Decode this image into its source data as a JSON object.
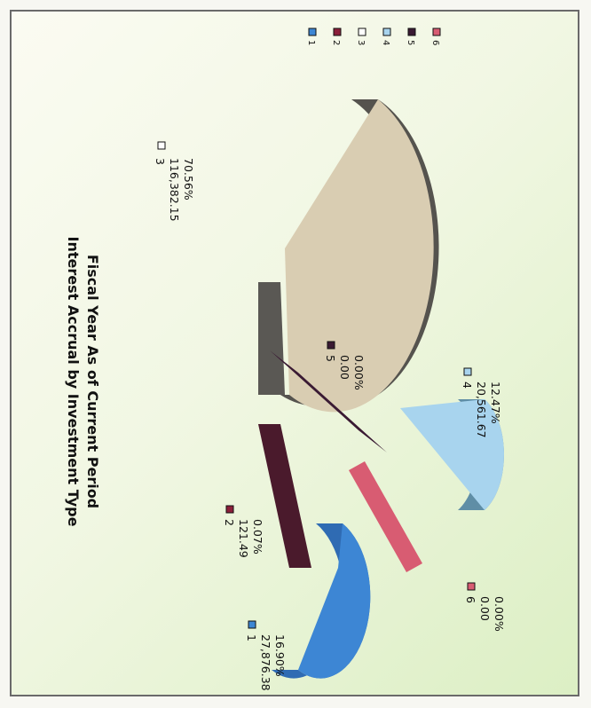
{
  "chart_data": {
    "type": "pie",
    "title": "Interest Accrual by Investment Type",
    "subtitle": "Fiscal Year As of Current Period",
    "slices": [
      {
        "label": "1",
        "value": "27,876.38",
        "percent": "16.90%",
        "pct": 16.9,
        "color": "#3d86d4"
      },
      {
        "label": "2",
        "value": "121.49",
        "percent": "0.07%",
        "pct": 0.07,
        "color": "#5a1e36"
      },
      {
        "label": "3",
        "value": "116,382.15",
        "percent": "70.56%",
        "pct": 70.56,
        "color": "#d9cdb2"
      },
      {
        "label": "4",
        "value": "20,561.67",
        "percent": "12.47%",
        "pct": 12.47,
        "color": "#a8d4ee"
      },
      {
        "label": "5",
        "value": "0.00",
        "percent": "0.00%",
        "pct": 0.0,
        "color": "#3a1a33"
      },
      {
        "label": "6",
        "value": "0.00",
        "percent": "0.00%",
        "pct": 0.0,
        "color": "#d85c72"
      }
    ],
    "legend": {
      "placement": "right",
      "entries": [
        "1",
        "2",
        "3",
        "4",
        "5",
        "6"
      ]
    }
  }
}
